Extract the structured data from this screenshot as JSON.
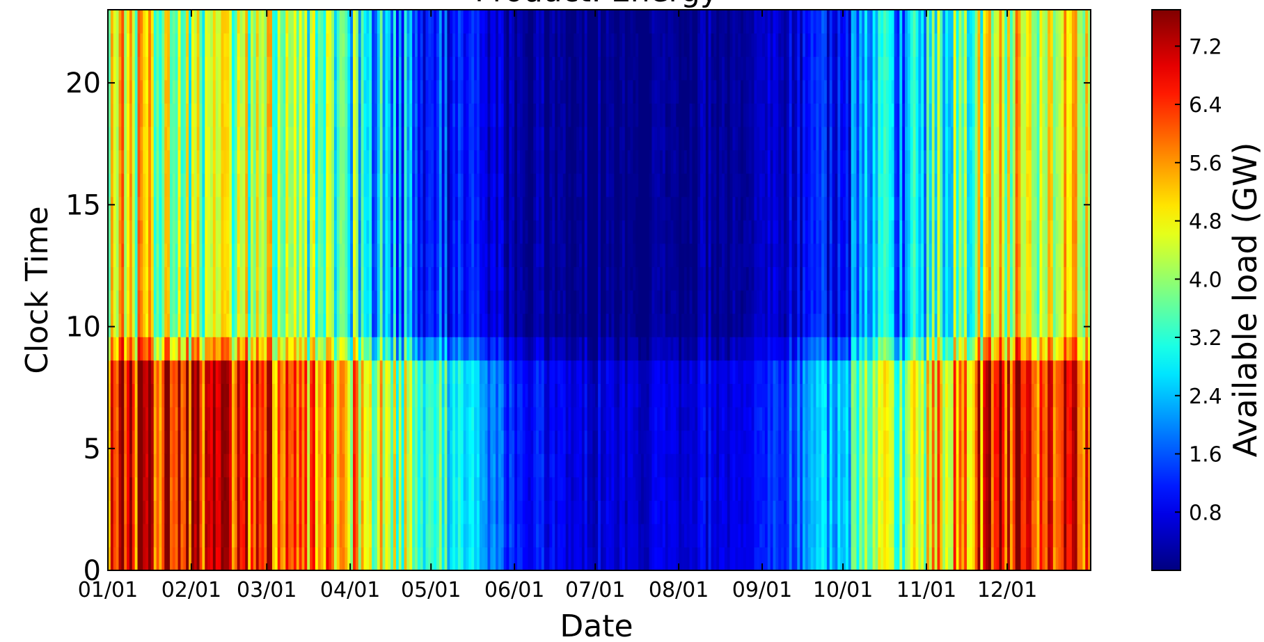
{
  "chart_data": {
    "type": "heatmap",
    "title": "Product: Energy",
    "xlabel": "Date",
    "ylabel": "Clock Time",
    "x_tick_labels": [
      "01/01",
      "02/01",
      "03/01",
      "04/01",
      "05/01",
      "06/01",
      "07/01",
      "08/01",
      "09/01",
      "10/01",
      "11/01",
      "12/01"
    ],
    "x_tick_days": [
      0,
      31,
      59,
      90,
      120,
      151,
      181,
      212,
      243,
      273,
      304,
      334
    ],
    "x_range_days": [
      0,
      365
    ],
    "y_ticks": [
      0,
      5,
      10,
      15,
      20
    ],
    "y_range": [
      0,
      23
    ],
    "colorbar": {
      "label": "Available load (GW)",
      "ticks": [
        0.8,
        1.6,
        2.4,
        3.2,
        4.0,
        4.8,
        5.6,
        6.4,
        7.2
      ],
      "tick_labels": [
        "0.8",
        "1.6",
        "2.4",
        "3.2",
        "4.0",
        "4.8",
        "5.6",
        "6.4",
        "7.2"
      ],
      "range": [
        0.0,
        7.7
      ],
      "colormap": "jet"
    },
    "grid": false,
    "description_of_values": "Available load (GW) per day of year (x) and hour of day (y): high (5-7.5 GW) from January to March and in December, especially 0-9 h; low (near 0-1 GW) from late May to mid September; transitional 2-5 GW in April and October-November.",
    "seasonal_profile_gw": [
      {
        "date": "01/01",
        "night": 6.6,
        "day": 5.0
      },
      {
        "date": "02/01",
        "night": 6.8,
        "day": 4.0
      },
      {
        "date": "03/01",
        "night": 6.2,
        "day": 4.2
      },
      {
        "date": "04/01",
        "night": 5.2,
        "day": 3.3
      },
      {
        "date": "05/01",
        "night": 3.6,
        "day": 1.5
      },
      {
        "date": "06/01",
        "night": 1.2,
        "day": 0.3
      },
      {
        "date": "07/01",
        "night": 0.7,
        "day": 0.1
      },
      {
        "date": "08/01",
        "night": 0.7,
        "day": 0.1
      },
      {
        "date": "09/01",
        "night": 1.0,
        "day": 0.4
      },
      {
        "date": "10/01",
        "night": 2.8,
        "day": 1.3
      },
      {
        "date": "11/01",
        "night": 4.8,
        "day": 3.0
      },
      {
        "date": "12/01",
        "night": 6.8,
        "day": 4.6
      }
    ]
  }
}
